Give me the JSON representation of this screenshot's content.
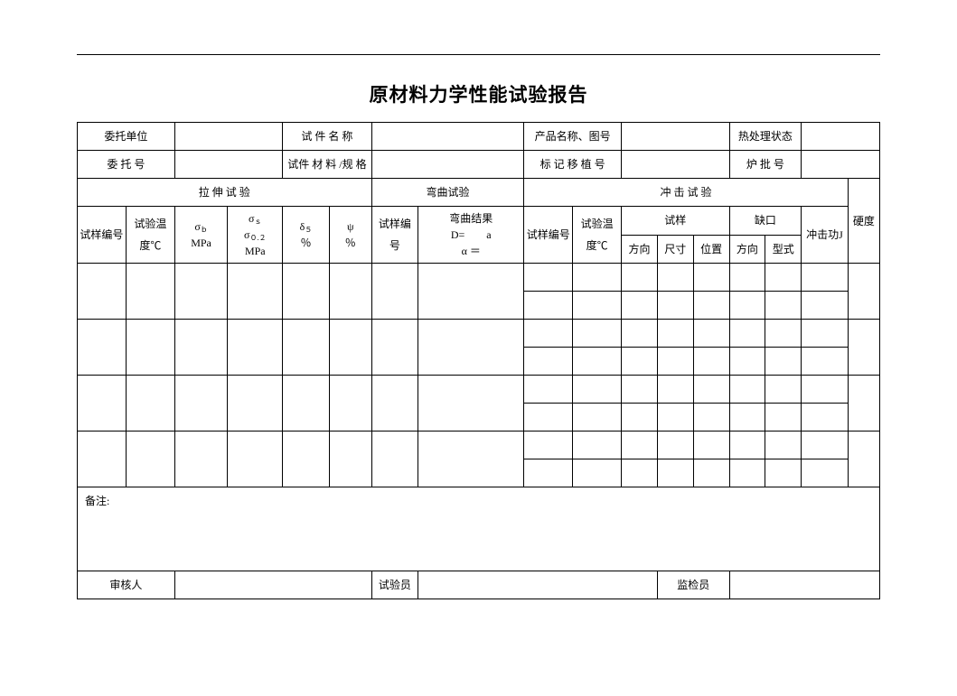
{
  "title": "原材料力学性能试验报告",
  "hdr": {
    "client": "委托单位",
    "spec_name": "试 件 名 称",
    "prod": "产品名称、图号",
    "heat": "热处理状态",
    "order": "委 托 号",
    "spec_mat": "试件 材 料 /规 格",
    "mark": "标 记 移 植 号",
    "furnace": "炉  批  号"
  },
  "grp": {
    "tensile": "拉  伸  试  验",
    "bend": "弯曲试验",
    "impact": "冲  击  试  验",
    "hard": "硬度"
  },
  "col": {
    "sid": "试样编号",
    "temp_c": "试验温度℃",
    "sigma_b": "σ<span class='sub'>ｂ</span><br>MPa",
    "sigma_s": "σ<span class='sub'>ｓ</span><br>σ<span class='sub'>０.２</span><br>MPa",
    "delta": "δ<span class='sub'>５</span><br>％",
    "psi": "ψ<br>％",
    "bend_res": "弯曲结果<br>D=　　a<br>α ＝",
    "temp2": "试验温度℃",
    "sample": "试样",
    "notch": "缺口",
    "dir": "方向",
    "size": "尺寸",
    "pos": "位置",
    "ntype": "型式",
    "impJ": "冲击功J"
  },
  "ftr": {
    "remarks": "备注:",
    "reviewer": "审核人",
    "tester": "试验员",
    "inspector": "监检员"
  }
}
